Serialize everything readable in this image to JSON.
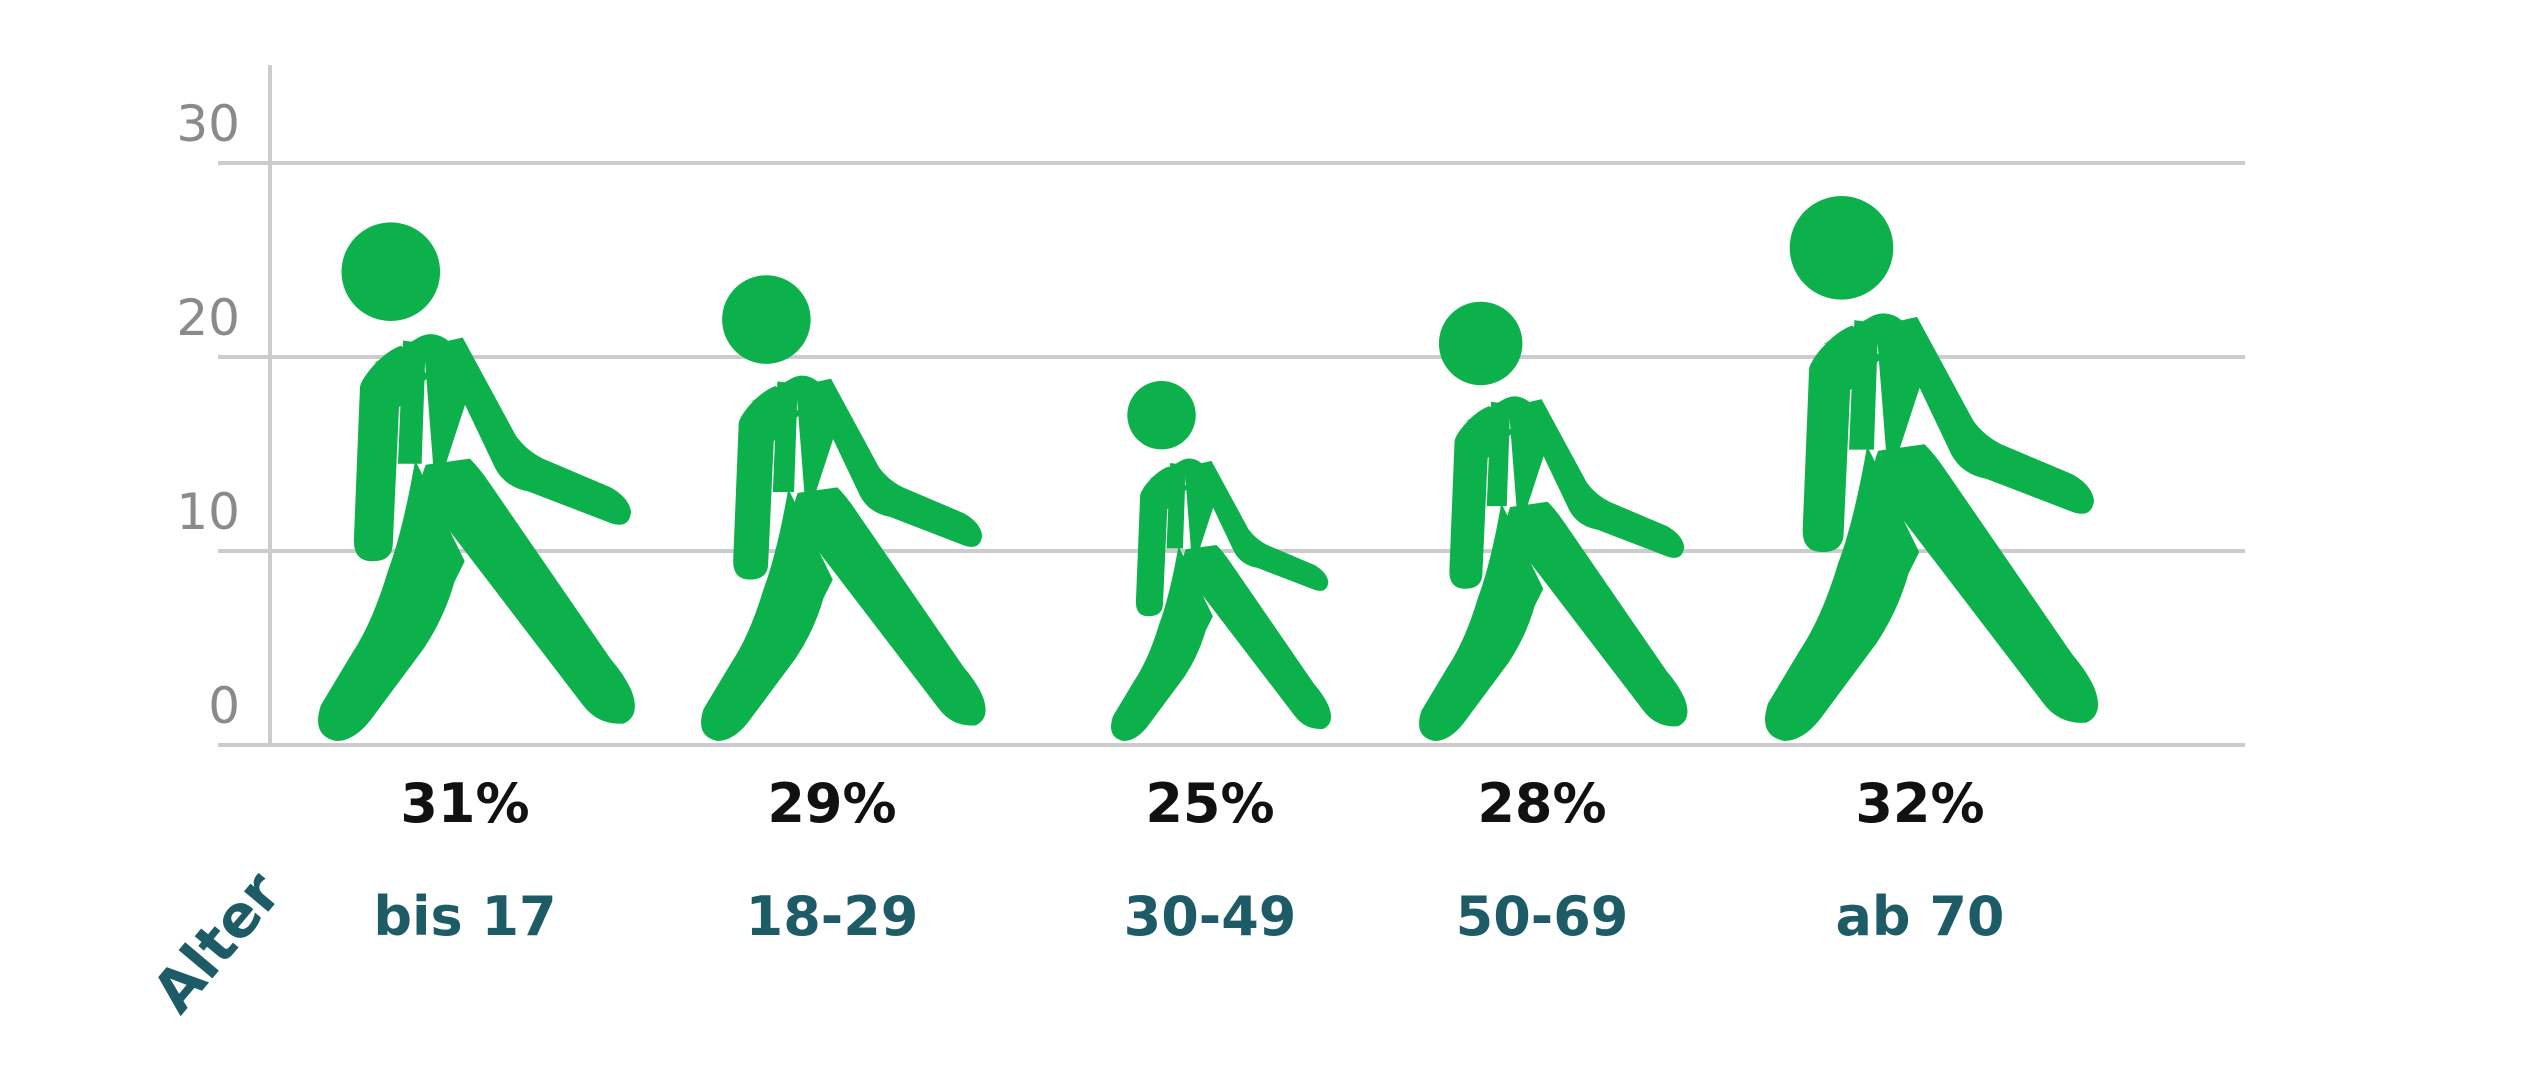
{
  "chart_data": {
    "type": "bar",
    "categories": [
      "bis 17",
      "18-29",
      "30-49",
      "50-69",
      "ab 70"
    ],
    "values": [
      31,
      29,
      25,
      28,
      32
    ],
    "value_labels": [
      "31%",
      "29%",
      "25%",
      "28%",
      "32%"
    ],
    "xlabel": "Alter",
    "ylabel": "",
    "ylim": [
      0,
      30
    ],
    "yticks": [
      0,
      10,
      20,
      30
    ],
    "grid": true,
    "mark": "walking-person-icon"
  },
  "colors": {
    "mark": "#0db14b",
    "grid": "#cccccc",
    "tick_text": "#8a8a8a",
    "category_text": "#1d5c66",
    "value_text": "#111111"
  }
}
